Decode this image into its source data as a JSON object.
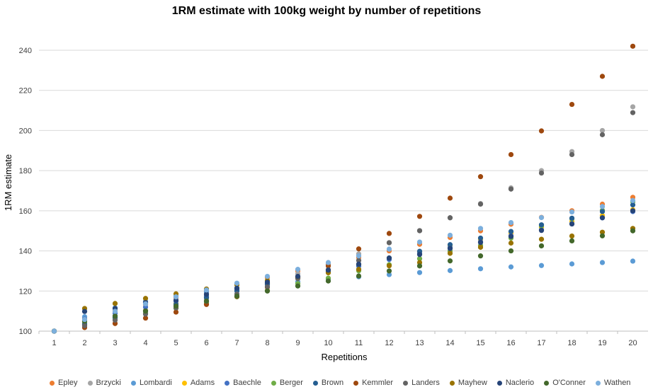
{
  "chart_data": {
    "type": "scatter",
    "title": "1RM estimate with 100kg weight by number of repetitions",
    "xlabel": "Repetitions",
    "ylabel": "1RM estimate",
    "ylim": [
      100,
      245
    ],
    "yticks": [
      100,
      120,
      140,
      160,
      180,
      200,
      220,
      240
    ],
    "x": [
      1,
      2,
      3,
      4,
      5,
      6,
      7,
      8,
      9,
      10,
      11,
      12,
      13,
      14,
      15,
      16,
      17,
      18,
      19,
      20
    ],
    "grid": true,
    "legend_position": "bottom",
    "series": [
      {
        "name": "Epley",
        "color": "#ED7D31",
        "values": [
          100,
          106.7,
          110,
          113.3,
          116.7,
          120,
          123.3,
          126.7,
          130,
          133.3,
          136.7,
          140,
          143.3,
          146.7,
          150,
          153.3,
          156.7,
          160,
          163.3,
          166.7
        ]
      },
      {
        "name": "Brzycki",
        "color": "#A5A5A5",
        "values": [
          100,
          102.9,
          105.9,
          109.1,
          112.5,
          116.1,
          120,
          124.1,
          128.6,
          133.3,
          138.5,
          144,
          150,
          156.5,
          163.6,
          171.4,
          180,
          189.5,
          200,
          211.8
        ]
      },
      {
        "name": "Lombardi",
        "color": "#5B9BD5",
        "values": [
          100,
          107.2,
          111.6,
          114.9,
          117.5,
          119.6,
          121.5,
          123.1,
          124.6,
          125.9,
          127.1,
          128.2,
          129.2,
          130.2,
          131.1,
          132,
          132.7,
          133.5,
          134.2,
          134.9
        ]
      },
      {
        "name": "Adams",
        "color": "#FFC000",
        "values": [
          100,
          103.6,
          107,
          110.4,
          113.8,
          117,
          120.4,
          123.7,
          127,
          130.2,
          133.3,
          136.4,
          139.6,
          142.7,
          145.7,
          148.8,
          151.8,
          154.6,
          157.6,
          160.5
        ]
      },
      {
        "name": "Baechle",
        "color": "#4472C4",
        "values": [
          100,
          106,
          108.9,
          112,
          114.9,
          117.6,
          120.7,
          123.8,
          126.5,
          129.5,
          132.4,
          135.7,
          138.7,
          141.7,
          144.6,
          147.6,
          150.5,
          153.6,
          156.5,
          159.6
        ]
      },
      {
        "name": "Berger",
        "color": "#70AD47",
        "values": [
          100,
          104.4,
          106.5,
          108.8,
          111.4,
          114.1,
          117.1,
          120.2,
          123.7,
          126.4,
          130.1,
          133.1,
          136.1,
          139.9,
          142.7,
          146.4,
          152.5,
          156,
          160.2,
          164.5
        ]
      },
      {
        "name": "Brown",
        "color": "#255E91",
        "values": [
          100,
          103.5,
          106.8,
          110.1,
          113.4,
          116.7,
          120,
          123.4,
          126.6,
          129.9,
          133.2,
          136.5,
          139.8,
          143.1,
          146.4,
          149.7,
          153,
          156.3,
          159.6,
          162.9
        ]
      },
      {
        "name": "Kemmler",
        "color": "#9E480E",
        "values": [
          100,
          101.8,
          103.8,
          106.5,
          109.5,
          113.3,
          117.3,
          121.9,
          126.9,
          132.5,
          141,
          148.7,
          157.2,
          166.3,
          177,
          188,
          199.8,
          213,
          227,
          242
        ]
      },
      {
        "name": "Landers",
        "color": "#636363",
        "values": [
          100,
          102.7,
          105.5,
          108.5,
          111.6,
          114.9,
          118.5,
          122.2,
          126.2,
          130.6,
          135.2,
          144.1,
          150.1,
          156.5,
          163.3,
          170.8,
          178.8,
          188,
          197.9,
          208.9
        ]
      },
      {
        "name": "Mayhew",
        "color": "#997300",
        "values": [
          100,
          111.3,
          113.8,
          116.3,
          118.6,
          121,
          123.1,
          125.2,
          127.2,
          129.1,
          130.8,
          132.6,
          134.2,
          138.8,
          141.8,
          143.9,
          145.8,
          147.4,
          149.3,
          151.2
        ]
      },
      {
        "name": "Naclerio",
        "color": "#264478",
        "values": [
          100,
          109.8,
          111.3,
          114.2,
          115.4,
          118.4,
          121.4,
          124.4,
          127.3,
          130.4,
          133.4,
          136.4,
          138.2,
          141.2,
          144.2,
          147.2,
          150.2,
          153.4,
          156.5,
          160
        ]
      },
      {
        "name": "O'Conner",
        "color": "#43682B",
        "values": [
          100,
          105,
          107.5,
          110,
          112.5,
          115,
          117.5,
          120,
          122.5,
          125,
          127.5,
          130,
          132.5,
          135,
          137.5,
          140,
          142.5,
          145,
          147.5,
          150
        ]
      },
      {
        "name": "Wathen",
        "color": "#7CAFDD",
        "values": [
          100,
          105.8,
          109.9,
          113.6,
          117.1,
          120.5,
          123.9,
          127.3,
          130.8,
          134.2,
          137.5,
          140.9,
          144.4,
          147.8,
          151.2,
          154.1,
          156.6,
          159.4,
          162.1,
          165.1
        ]
      }
    ]
  }
}
